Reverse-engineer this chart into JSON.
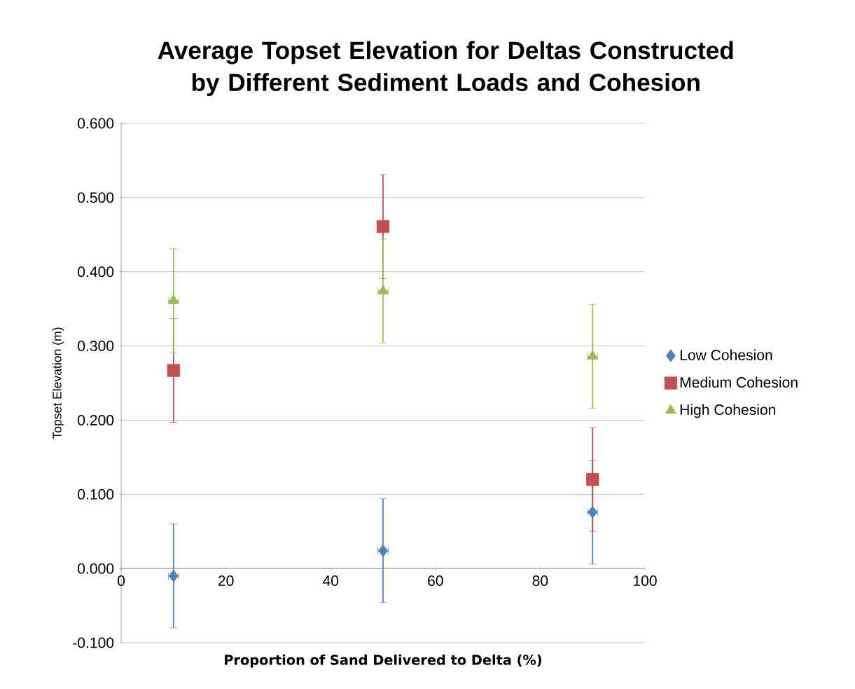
{
  "chart_data": {
    "type": "scatter",
    "title": "Average Topset Elevation for Deltas Constructed by Different Sediment Loads and Cohesion",
    "xlabel": "Proportion of Sand Delivered to Delta (%)",
    "ylabel": "Topset Elevation (m)",
    "x": [
      10,
      50,
      90
    ],
    "series": [
      {
        "name": "Low Cohesion",
        "color": "#4f81bd",
        "marker": "diamond",
        "values": [
          -0.01,
          0.024,
          0.076
        ],
        "errors": [
          0.07,
          0.07,
          0.07
        ],
        "xerrors": [
          1,
          1,
          1
        ]
      },
      {
        "name": "Medium Cohesion",
        "color": "#c0504d",
        "marker": "square",
        "values": [
          0.267,
          0.461,
          0.12
        ],
        "errors": [
          0.07,
          0.07,
          0.07
        ]
      },
      {
        "name": "High Cohesion",
        "color": "#9bbb59",
        "marker": "triangle",
        "values": [
          0.361,
          0.374,
          0.286
        ],
        "errors": [
          0.07,
          0.07,
          0.07
        ],
        "xerrors": [
          1,
          1,
          1
        ]
      }
    ],
    "xlim": [
      0,
      100
    ],
    "xticks": [
      0,
      20,
      40,
      60,
      80,
      100
    ],
    "ylim": [
      -0.1,
      0.6
    ],
    "yticks": [
      {
        "value": -0.1,
        "label": "-0.100"
      },
      {
        "value": 0,
        "label": "0.000"
      },
      {
        "value": 0.1,
        "label": "0.100"
      },
      {
        "value": 0.2,
        "label": "0.200"
      },
      {
        "value": 0.3,
        "label": "0.300"
      },
      {
        "value": 0.4,
        "label": "0.400"
      },
      {
        "value": 0.5,
        "label": "0.500"
      },
      {
        "value": 0.6,
        "label": "0.600"
      }
    ],
    "grid": "y",
    "legend": "right"
  }
}
